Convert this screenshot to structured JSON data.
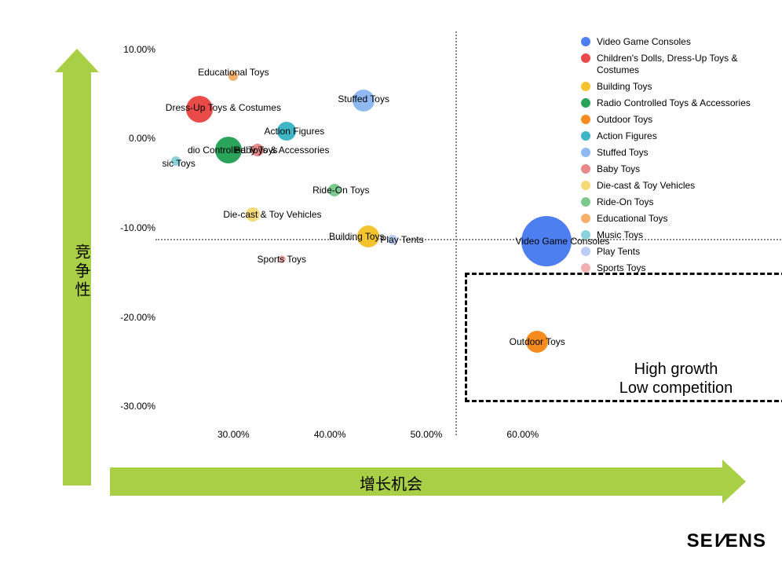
{
  "axes": {
    "x_label": "增长机会",
    "y_label": "竞争性",
    "arrow_color": "#a8cf45",
    "grid_color": "#888888",
    "xlim": [
      18,
      75
    ],
    "ylim": [
      -32,
      12
    ],
    "x_ticks": [
      30,
      40,
      50,
      60
    ],
    "x_tick_labels": [
      "30.00%",
      "40.00%",
      "50.00%",
      "60.00%"
    ],
    "y_ticks": [
      -30,
      -20,
      -10,
      0,
      10
    ],
    "y_tick_labels": [
      "-30.00%",
      "-20.00%",
      "-10.00%",
      "0.00%",
      "10.00%"
    ],
    "divider_x": 53,
    "divider_y": -11.2,
    "tick_fontsize": 12,
    "label_fontsize": 20
  },
  "highlight": {
    "xmin": 54,
    "xmax": 75,
    "ymin": -29.5,
    "ymax": -15,
    "text1": "High growth",
    "text2": "Low competition",
    "text_fontsize": 20
  },
  "chart": {
    "type": "bubble",
    "background_color": "#ffffff",
    "label_fontsize": 12,
    "series": [
      {
        "name": "Video Game Consoles",
        "color": "#4e7ff0",
        "x": 62.5,
        "y": -11.5,
        "r": 32,
        "label_dx": 20,
        "label_dy": 0
      },
      {
        "name": "Children's Dolls, Dress-Up Toys & Costumes",
        "short": "Dress-Up Toys & Costumes",
        "color": "#e94b49",
        "x": 26.5,
        "y": 3.3,
        "r": 17,
        "label_dx": 30,
        "label_dy": -2
      },
      {
        "name": "Building Toys",
        "color": "#f4c430",
        "x": 44,
        "y": -11,
        "r": 14,
        "label_dx": -15,
        "label_dy": 0
      },
      {
        "name": "Radio Controlled Toys & Accessories",
        "short": "dio Controlled Toys & Accessories",
        "color": "#2aa35b",
        "x": 29.5,
        "y": -1.3,
        "r": 17,
        "label_dx": 38,
        "label_dy": 0
      },
      {
        "name": "Outdoor Toys",
        "color": "#f58a1f",
        "x": 61.5,
        "y": -22.8,
        "r": 14,
        "label_dx": 0,
        "label_dy": 0
      },
      {
        "name": "Action Figures",
        "color": "#3fb6c6",
        "x": 35.5,
        "y": 0.8,
        "r": 12,
        "label_dx": 10,
        "label_dy": 0
      },
      {
        "name": "Stuffed Toys",
        "color": "#8fb9f0",
        "x": 43.5,
        "y": 4.3,
        "r": 14,
        "label_dx": 0,
        "label_dy": -2
      },
      {
        "name": "Baby Toys",
        "color": "#e98a89",
        "x": 32.5,
        "y": -1.3,
        "r": 8,
        "label_dx": -2,
        "label_dy": 0
      },
      {
        "name": "Die-cast & Toy Vehicles",
        "color": "#f5da7a",
        "x": 32,
        "y": -8.5,
        "r": 9,
        "label_dx": 25,
        "label_dy": 0
      },
      {
        "name": "Ride-On Toys",
        "color": "#7cc98f",
        "x": 40.5,
        "y": -5.8,
        "r": 8,
        "label_dx": 8,
        "label_dy": 0
      },
      {
        "name": "Educational Toys",
        "color": "#f7b06a",
        "x": 30,
        "y": 7,
        "r": 6,
        "label_dx": 0,
        "label_dy": -5
      },
      {
        "name": "Music Toys",
        "short": "sic Toys",
        "color": "#8cd2db",
        "x": 24,
        "y": -2.5,
        "r": 6,
        "label_dx": 4,
        "label_dy": 3
      },
      {
        "name": "Play Tents",
        "color": "#b9cdf2",
        "x": 46.5,
        "y": -11.3,
        "r": 6,
        "label_dx": 12,
        "label_dy": 0
      },
      {
        "name": "Sports Toys",
        "color": "#efb1b0",
        "x": 35,
        "y": -13.5,
        "r": 5,
        "label_dx": 0,
        "label_dy": 0
      }
    ]
  },
  "legend": {
    "fontsize": 12,
    "dot_size": 12
  },
  "brand": "SEVENS"
}
